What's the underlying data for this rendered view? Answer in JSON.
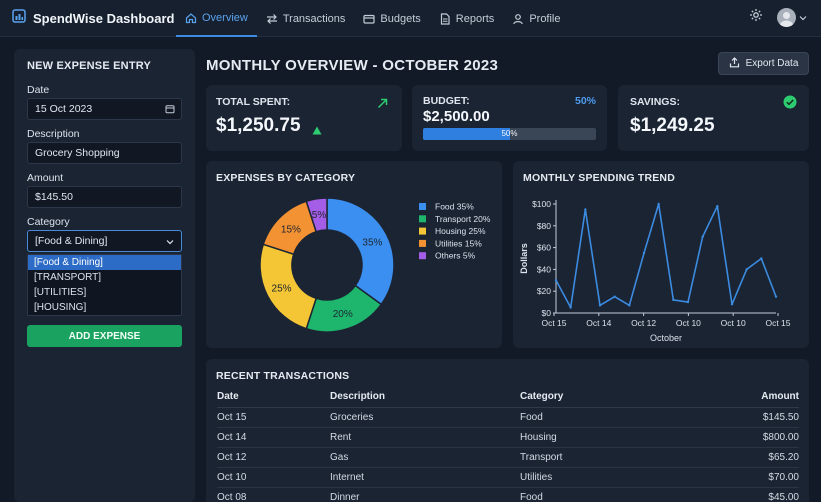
{
  "app": {
    "title": "SpendWise Dashboard"
  },
  "nav": {
    "items": [
      {
        "label": "Overview",
        "icon": "home-icon",
        "active": true
      },
      {
        "label": "Transactions",
        "icon": "transfer-arrows-icon",
        "active": false
      },
      {
        "label": "Budgets",
        "icon": "wallet-icon",
        "active": false
      },
      {
        "label": "Reports",
        "icon": "document-icon",
        "active": false
      },
      {
        "label": "Profile",
        "icon": "user-icon",
        "active": false
      }
    ]
  },
  "entry_form": {
    "title": "NEW EXPENSE ENTRY",
    "date_label": "Date",
    "date_value": "15 Oct 2023",
    "description_label": "Description",
    "description_value": "Grocery Shopping",
    "amount_label": "Amount",
    "amount_value": "$145.50",
    "category_label": "Category",
    "category_value": "[Food & Dining]",
    "category_options": [
      "[Food & Dining]",
      "[TRANSPORT]",
      "[UTILITIES]",
      "[HOUSING]"
    ],
    "submit_label": "ADD EXPENSE"
  },
  "main": {
    "title": "MONTHLY OVERVIEW - OCTOBER 2023",
    "export_label": "Export Data"
  },
  "kpis": {
    "total_spent": {
      "label": "TOTAL SPENT:",
      "value": "$1,250.75"
    },
    "budget": {
      "label": "BUDGET:",
      "value": "$2,500.00",
      "percent_text": "50%",
      "bar_label": "50%",
      "used_fraction": 0.5
    },
    "savings": {
      "label": "SAVINGS:",
      "value": "$1,249.25"
    }
  },
  "colors": {
    "accent": "#3b8be0",
    "positive": "#2ecc71",
    "food": "#3b8ff0",
    "transport": "#1db66c",
    "housing": "#f4c534",
    "utilities": "#f39233",
    "others": "#a45de6",
    "line": "#3b8be0"
  },
  "chart_data": [
    {
      "type": "pie",
      "title": "EXPENSES BY CATEGORY",
      "donut": true,
      "slices": [
        {
          "name": "Food",
          "value": 35,
          "label": "35%",
          "legend": "Food 35%"
        },
        {
          "name": "Transport",
          "value": 20,
          "label": "20%",
          "legend": "Transport 20%"
        },
        {
          "name": "Housing",
          "value": 25,
          "label": "25%",
          "legend": "Housing 25%"
        },
        {
          "name": "Utilities",
          "value": 15,
          "label": "15%",
          "legend": "Utilities 15%"
        },
        {
          "name": "Others",
          "value": 5,
          "label": "5%",
          "legend": "Others 5%"
        }
      ],
      "legend_position": "right"
    },
    {
      "type": "line",
      "title": "MONTHLY SPENDING TREND",
      "xlabel": "October",
      "ylabel": "Dollars",
      "ylim": [
        0,
        100
      ],
      "y_ticks": [
        "$0",
        "$20",
        "$40",
        "$60",
        "$80",
        "$100"
      ],
      "x_tick_labels": [
        "Oct 15",
        "Oct 14",
        "Oct 12",
        "Oct 10",
        "Oct 10",
        "Oct 15"
      ],
      "values": [
        30,
        5,
        95,
        7,
        15,
        7,
        55,
        100,
        12,
        10,
        70,
        98,
        8,
        40,
        50,
        15
      ],
      "grid": false
    }
  ],
  "transactions": {
    "title": "RECENT TRANSACTIONS",
    "columns": [
      "Date",
      "Description",
      "Category",
      "Amount"
    ],
    "rows": [
      [
        "Oct 15",
        "Groceries",
        "Food",
        "$145.50"
      ],
      [
        "Oct 14",
        "Rent",
        "Housing",
        "$800.00"
      ],
      [
        "Oct 12",
        "Gas",
        "Transport",
        "$65.20"
      ],
      [
        "Oct 10",
        "Internet",
        "Utilities",
        "$70.00"
      ],
      [
        "Oct 08",
        "Dinner",
        "Food",
        "$45.00"
      ]
    ]
  }
}
